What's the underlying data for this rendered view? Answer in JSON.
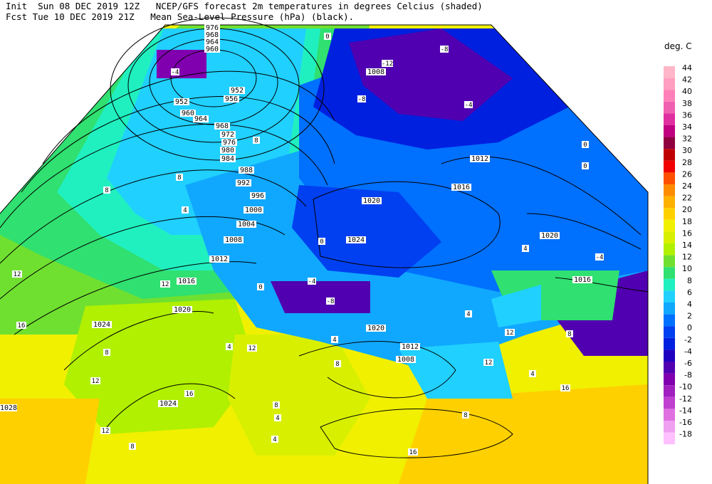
{
  "header": {
    "line1": "Init  Sun 08 DEC 2019 12Z   NCEP/GFS forecast 2m temperatures in degrees Celcius (shaded)",
    "line2": "Fcst Tue 10 DEC 2019 21Z   Mean Sea-Level Pressure (hPa) (black)."
  },
  "legend": {
    "unit": "deg. C",
    "steps": [
      {
        "label": "44",
        "color": "#ffb6c8"
      },
      {
        "label": "42",
        "color": "#ff9ec0"
      },
      {
        "label": "40",
        "color": "#ff80b8"
      },
      {
        "label": "38",
        "color": "#f060b0"
      },
      {
        "label": "36",
        "color": "#e030a0"
      },
      {
        "label": "34",
        "color": "#c00080"
      },
      {
        "label": "32",
        "color": "#900040"
      },
      {
        "label": "30",
        "color": "#c00000"
      },
      {
        "label": "28",
        "color": "#f00000"
      },
      {
        "label": "26",
        "color": "#ff5000"
      },
      {
        "label": "24",
        "color": "#ff8c00"
      },
      {
        "label": "22",
        "color": "#ffb000"
      },
      {
        "label": "20",
        "color": "#ffd000"
      },
      {
        "label": "18",
        "color": "#f0f000"
      },
      {
        "label": "16",
        "color": "#d8f000"
      },
      {
        "label": "14",
        "color": "#b0f000"
      },
      {
        "label": "12",
        "color": "#70e030"
      },
      {
        "label": "10",
        "color": "#30e070"
      },
      {
        "label": "8",
        "color": "#20f0c0"
      },
      {
        "label": "6",
        "color": "#20d0ff"
      },
      {
        "label": "4",
        "color": "#10a8ff"
      },
      {
        "label": "2",
        "color": "#0070ff"
      },
      {
        "label": "0",
        "color": "#0040f0"
      },
      {
        "label": "-2",
        "color": "#0020e0"
      },
      {
        "label": "-4",
        "color": "#2000c0"
      },
      {
        "label": "-6",
        "color": "#5000b0"
      },
      {
        "label": "-8",
        "color": "#8000b0"
      },
      {
        "label": "-10",
        "color": "#a020c0"
      },
      {
        "label": "-12",
        "color": "#c040d0"
      },
      {
        "label": "-14",
        "color": "#e070e0"
      },
      {
        "label": "-16",
        "color": "#f0a0f0"
      },
      {
        "label": "-18",
        "color": "#ffc0ff"
      }
    ]
  },
  "isobar_labels": [
    "976",
    "968",
    "964",
    "960",
    "952",
    "952",
    "956",
    "960",
    "964",
    "968",
    "972",
    "976",
    "980",
    "984",
    "988",
    "992",
    "996",
    "1000",
    "1004",
    "1008",
    "1012",
    "1016",
    "1020",
    "1024",
    "1024",
    "1028",
    "1020",
    "1024",
    "1012",
    "1016",
    "1020",
    "1016",
    "1020",
    "1008",
    "1012",
    "1008",
    "1016"
  ],
  "temp_labels": [
    "0",
    "-4",
    "-8",
    "-12",
    "-8",
    "-4",
    "0",
    "0",
    "4",
    "8",
    "8",
    "4",
    "8",
    "12",
    "12",
    "16",
    "12",
    "8",
    "4",
    "0",
    "-4",
    "-8",
    "0",
    "4",
    "8",
    "12",
    "16",
    "16",
    "12",
    "8",
    "4",
    "4",
    "8",
    "12",
    "-4",
    "4",
    "8",
    "12",
    "16",
    "4",
    "8"
  ]
}
